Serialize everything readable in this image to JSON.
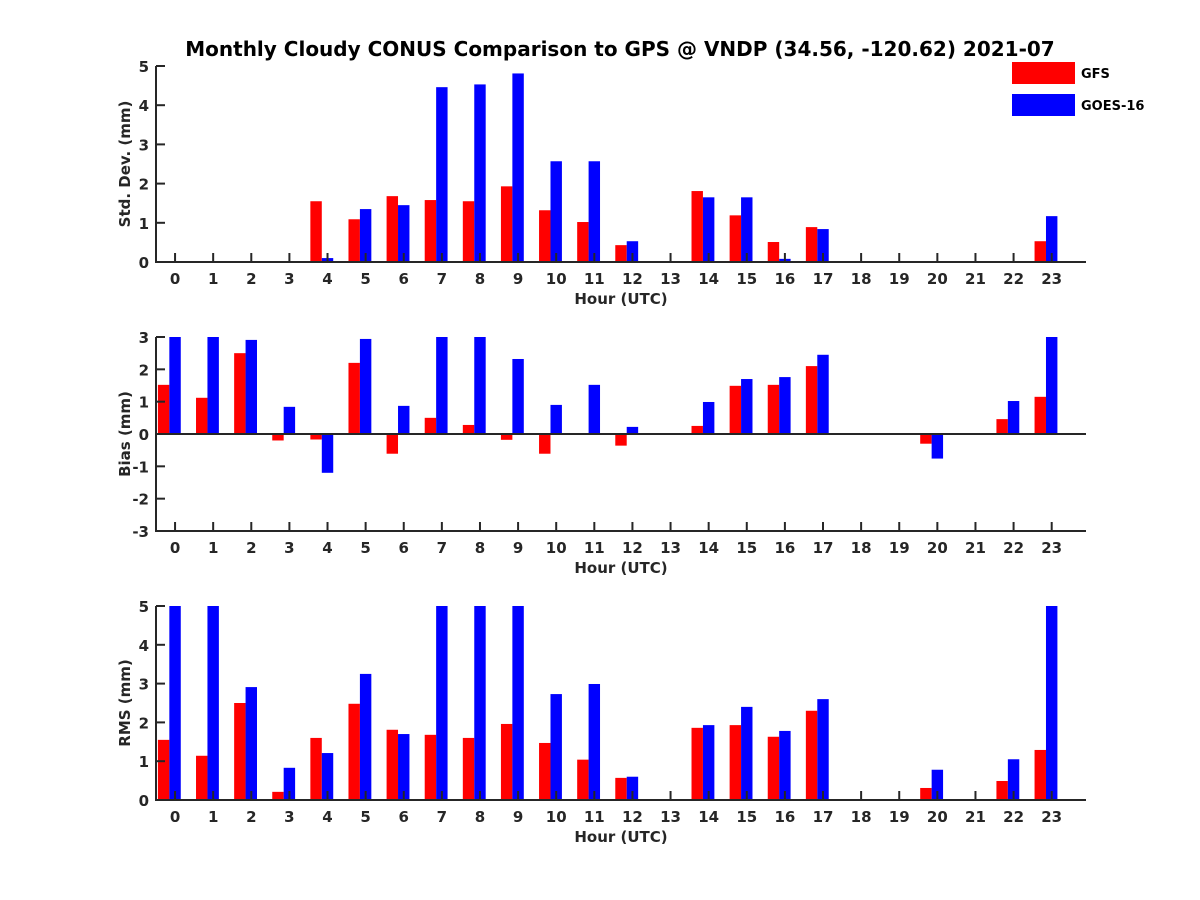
{
  "chart_data": {
    "type": "bar",
    "title": "Monthly Cloudy CONUS Comparison to GPS @ VNDP (34.56, -120.62) 2021-07",
    "legend": {
      "placement": "top-right",
      "entries": [
        {
          "name": "GFS",
          "color": "#ff0000"
        },
        {
          "name": "GOES-16",
          "color": "#0000ff"
        }
      ]
    },
    "categories": [
      "0",
      "1",
      "2",
      "3",
      "4",
      "5",
      "6",
      "7",
      "8",
      "9",
      "10",
      "11",
      "12",
      "13",
      "14",
      "15",
      "16",
      "17",
      "18",
      "19",
      "20",
      "21",
      "22",
      "23"
    ],
    "panels": [
      {
        "id": "std-dev",
        "ylabel": "Std. Dev. (mm)",
        "xlabel": "Hour (UTC)",
        "ylim": [
          0,
          5
        ],
        "xlim": [
          -0.5,
          23.9
        ],
        "yticks": [
          0,
          1,
          2,
          3,
          4,
          5
        ],
        "grid": false,
        "series": [
          {
            "name": "GFS",
            "color": "#ff0000",
            "values": [
              0,
              0,
              0,
              0,
              1.55,
              1.09,
              1.68,
              1.58,
              1.55,
              1.93,
              1.32,
              1.02,
              0.43,
              0,
              1.81,
              1.19,
              0.51,
              0.89,
              0,
              0,
              0,
              0,
              0,
              0.53
            ]
          },
          {
            "name": "GOES-16",
            "color": "#0000ff",
            "values": [
              0,
              0,
              0,
              0,
              0.1,
              1.35,
              1.45,
              4.46,
              4.53,
              4.81,
              2.57,
              2.57,
              0.53,
              0,
              1.65,
              1.65,
              0.08,
              0.84,
              0,
              0,
              0,
              0,
              0,
              1.17
            ]
          }
        ]
      },
      {
        "id": "bias",
        "ylabel": "Bias (mm)",
        "xlabel": "Hour (UTC)",
        "ylim": [
          -3,
          3
        ],
        "xlim": [
          -0.5,
          23.9
        ],
        "yticks": [
          -3,
          -2,
          -1,
          0,
          1,
          2,
          3
        ],
        "grid": false,
        "zero_line": true,
        "series": [
          {
            "name": "GFS",
            "color": "#ff0000",
            "values": [
              1.52,
              1.12,
              2.5,
              -0.2,
              -0.17,
              2.2,
              -0.61,
              0.5,
              0.28,
              -0.18,
              -0.61,
              0.02,
              -0.36,
              0,
              0.25,
              1.49,
              1.52,
              2.1,
              0,
              0,
              -0.3,
              0,
              0.46,
              1.15
            ]
          },
          {
            "name": "GOES-16",
            "color": "#0000ff",
            "values": [
              3,
              3,
              2.91,
              0.84,
              -1.2,
              2.94,
              0.87,
              3,
              3,
              2.32,
              0.9,
              1.52,
              0.22,
              0,
              0.99,
              1.7,
              1.76,
              2.45,
              0,
              0,
              -0.76,
              0,
              1.02,
              3
            ]
          }
        ]
      },
      {
        "id": "rms",
        "ylabel": "RMS (mm)",
        "xlabel": "Hour (UTC)",
        "ylim": [
          0,
          5
        ],
        "xlim": [
          -0.5,
          23.9
        ],
        "yticks": [
          0,
          1,
          2,
          3,
          4,
          5
        ],
        "grid": false,
        "series": [
          {
            "name": "GFS",
            "color": "#ff0000",
            "values": [
              1.55,
              1.14,
              2.5,
              0.21,
              1.6,
              2.48,
              1.81,
              1.68,
              1.6,
              1.96,
              1.47,
              1.04,
              0.57,
              0,
              1.86,
              1.93,
              1.63,
              2.3,
              0,
              0,
              0.31,
              0,
              0.49,
              1.29
            ]
          },
          {
            "name": "GOES-16",
            "color": "#0000ff",
            "values": [
              5,
              5,
              2.91,
              0.83,
              1.21,
              3.25,
              1.7,
              5,
              5,
              5,
              2.73,
              2.99,
              0.6,
              0,
              1.93,
              2.4,
              1.78,
              2.6,
              0,
              0,
              0.78,
              0,
              1.05,
              5
            ]
          }
        ]
      }
    ]
  }
}
